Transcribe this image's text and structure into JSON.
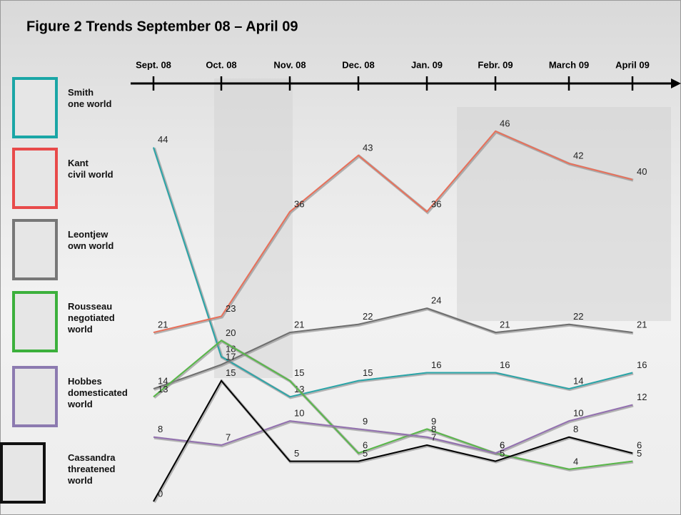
{
  "chart_data": {
    "type": "line",
    "title": "Figure 2 Trends September 08 – April 09",
    "categories": [
      "Sept. 08",
      "Oct. 08",
      "Nov. 08",
      "Dec. 08",
      "Jan. 09",
      "Febr. 09",
      "March 09",
      "April 09"
    ],
    "series": [
      {
        "name": "Smith",
        "description": "one world",
        "color": "#2aa5a8",
        "border": "#1aa6a6",
        "values": [
          44,
          18,
          13,
          15,
          16,
          16,
          14,
          16
        ]
      },
      {
        "name": "Kant",
        "description": "civil world",
        "color": "#e8705a",
        "border": "#e84a4a",
        "values": [
          21,
          23,
          36,
          43,
          36,
          46,
          42,
          40
        ]
      },
      {
        "name": "Leontjew",
        "description": "own world",
        "color": "#6e6e6e",
        "border": "#777777",
        "values": [
          14,
          17,
          21,
          22,
          24,
          21,
          22,
          21
        ]
      },
      {
        "name": "Rousseau",
        "description": "negotiated world",
        "color": "#58b848",
        "border": "#3cb03c",
        "values": [
          13,
          20,
          15,
          6,
          9,
          6,
          4,
          5
        ]
      },
      {
        "name": "Hobbes",
        "description": "domesticated world",
        "color": "#9370b0",
        "border": "#8c7ab0",
        "values": [
          8,
          7,
          10,
          9,
          8,
          6,
          10,
          12
        ]
      },
      {
        "name": "Cassandra",
        "description": "threatened world",
        "color": "#000000",
        "border": "#111111",
        "values": [
          0,
          15,
          5,
          5,
          7,
          5,
          8,
          6
        ]
      }
    ]
  }
}
